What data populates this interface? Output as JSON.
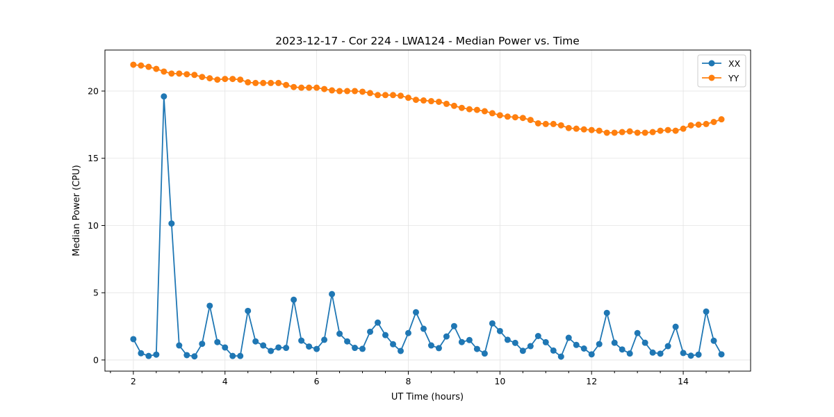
{
  "chart_data": {
    "type": "line",
    "title": "2023-12-17 - Cor 224 - LWA124 - Median Power vs. Time",
    "xlabel": "UT Time (hours)",
    "ylabel": "Median Power (CPU)",
    "xlim": [
      1.38,
      15.47
    ],
    "ylim": [
      -0.83,
      23.05
    ],
    "xticks": [
      2,
      4,
      6,
      8,
      10,
      12,
      14
    ],
    "xtick_labels": [
      "2",
      "4",
      "6",
      "8",
      "10",
      "12",
      "14"
    ],
    "yticks": [
      0,
      5,
      10,
      15,
      20
    ],
    "ytick_labels": [
      "0",
      "5",
      "10",
      "15",
      "20"
    ],
    "grid": true,
    "legend_position": "top-right",
    "x_start": 2,
    "x_step": 0.16667,
    "series": [
      {
        "name": "XX",
        "color": "#1f77b4",
        "marker": "circle",
        "values": [
          1.55,
          0.5,
          0.3,
          0.4,
          19.6,
          10.15,
          1.08,
          0.36,
          0.27,
          1.2,
          4.03,
          1.33,
          0.93,
          0.3,
          0.3,
          3.65,
          1.38,
          1.08,
          0.67,
          0.93,
          0.9,
          4.48,
          1.44,
          1.0,
          0.82,
          1.5,
          4.9,
          1.95,
          1.38,
          0.9,
          0.83,
          2.1,
          2.78,
          1.85,
          1.17,
          0.67,
          2.0,
          3.55,
          2.32,
          1.08,
          0.88,
          1.75,
          2.52,
          1.33,
          1.48,
          0.82,
          0.48,
          2.72,
          2.15,
          1.5,
          1.27,
          0.68,
          1.03,
          1.78,
          1.32,
          0.7,
          0.25,
          1.65,
          1.12,
          0.85,
          0.42,
          1.18,
          3.5,
          1.28,
          0.78,
          0.48,
          2.0,
          1.28,
          0.55,
          0.47,
          1.03,
          2.47,
          0.52,
          0.32,
          0.4,
          3.6,
          1.43,
          0.42
        ]
      },
      {
        "name": "YY",
        "color": "#ff7f0e",
        "marker": "circle",
        "values": [
          21.96,
          21.9,
          21.8,
          21.65,
          21.45,
          21.3,
          21.3,
          21.25,
          21.2,
          21.05,
          20.95,
          20.85,
          20.9,
          20.9,
          20.85,
          20.65,
          20.6,
          20.6,
          20.6,
          20.6,
          20.45,
          20.3,
          20.25,
          20.25,
          20.25,
          20.15,
          20.05,
          20.0,
          20.0,
          20.0,
          19.95,
          19.85,
          19.7,
          19.7,
          19.7,
          19.65,
          19.5,
          19.35,
          19.3,
          19.25,
          19.2,
          19.05,
          18.9,
          18.75,
          18.65,
          18.6,
          18.5,
          18.35,
          18.2,
          18.1,
          18.05,
          18.0,
          17.85,
          17.6,
          17.55,
          17.55,
          17.45,
          17.25,
          17.2,
          17.15,
          17.1,
          17.05,
          16.9,
          16.9,
          16.95,
          17.0,
          16.9,
          16.9,
          16.95,
          17.05,
          17.1,
          17.05,
          17.2,
          17.45,
          17.5,
          17.55,
          17.7,
          17.9
        ]
      }
    ]
  }
}
